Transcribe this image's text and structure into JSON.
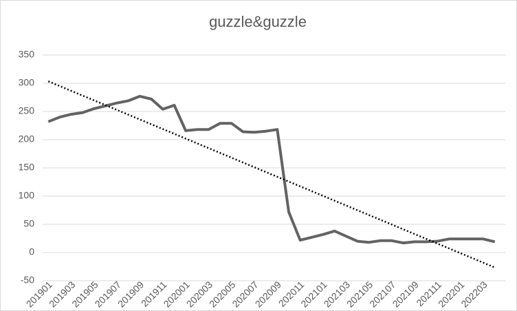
{
  "chart_data": {
    "type": "line",
    "title": "guzzle&guzzle",
    "categories": [
      "201901",
      null,
      "201903",
      null,
      "201905",
      null,
      "201907",
      null,
      "201909",
      null,
      "201911",
      null,
      "202001",
      null,
      "202003",
      null,
      "202005",
      null,
      "202007",
      null,
      "202009",
      null,
      "202011",
      null,
      "202101",
      null,
      "202103",
      null,
      "202105",
      null,
      "202107",
      null,
      "202109",
      null,
      "202111",
      null,
      "202201",
      null,
      "202203",
      null
    ],
    "series": [
      {
        "name": "guzzle&guzzle",
        "color": "#636363",
        "values": [
          232,
          240,
          245,
          248,
          255,
          260,
          265,
          269,
          277,
          272,
          254,
          261,
          216,
          218,
          218,
          229,
          229,
          214,
          213,
          215,
          218,
          72,
          22,
          27,
          32,
          38,
          29,
          20,
          18,
          21,
          21,
          17,
          19,
          19,
          20,
          24,
          24,
          24,
          24,
          19
        ]
      }
    ],
    "trendline": "linear",
    "ylim": [
      -50,
      350
    ],
    "yticks": [
      -50,
      0,
      50,
      100,
      150,
      200,
      250,
      300,
      350
    ],
    "grid": true
  }
}
